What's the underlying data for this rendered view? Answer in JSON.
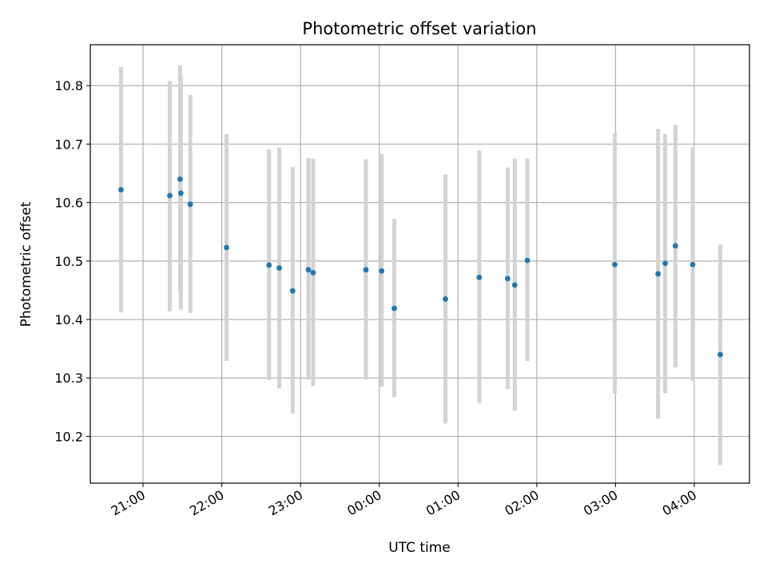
{
  "chart_data": {
    "type": "scatter",
    "title": "Photometric offset variation",
    "xlabel": "UTC time",
    "ylabel": "Photometric offset",
    "x_unit": "UTC time (hours; values past 24 are after midnight)",
    "xlim": [
      20.33,
      28.7
    ],
    "ylim": [
      10.12,
      10.87
    ],
    "x_ticks": [
      {
        "value": 21,
        "label": "21:00"
      },
      {
        "value": 22,
        "label": "22:00"
      },
      {
        "value": 23,
        "label": "23:00"
      },
      {
        "value": 24,
        "label": "00:00"
      },
      {
        "value": 25,
        "label": "01:00"
      },
      {
        "value": 26,
        "label": "02:00"
      },
      {
        "value": 27,
        "label": "03:00"
      },
      {
        "value": 28,
        "label": "04:00"
      }
    ],
    "y_ticks": [
      {
        "value": 10.2,
        "label": "10.2"
      },
      {
        "value": 10.3,
        "label": "10.3"
      },
      {
        "value": 10.4,
        "label": "10.4"
      },
      {
        "value": 10.5,
        "label": "10.5"
      },
      {
        "value": 10.6,
        "label": "10.6"
      },
      {
        "value": 10.7,
        "label": "10.7"
      },
      {
        "value": 10.8,
        "label": "10.8"
      }
    ],
    "grid": true,
    "colors": {
      "point": "#1f77b4",
      "errorbar": "#d3d3d3",
      "grid": "#b0b0b0",
      "axis": "#000000"
    },
    "points": [
      {
        "x": 20.72,
        "y": 10.622,
        "low": 10.412,
        "high": 10.832
      },
      {
        "x": 21.34,
        "y": 10.612,
        "low": 10.414,
        "high": 10.808
      },
      {
        "x": 21.47,
        "y": 10.64,
        "low": 10.446,
        "high": 10.835
      },
      {
        "x": 21.48,
        "y": 10.616,
        "low": 10.417,
        "high": 10.816
      },
      {
        "x": 21.6,
        "y": 10.597,
        "low": 10.411,
        "high": 10.784
      },
      {
        "x": 22.06,
        "y": 10.523,
        "low": 10.329,
        "high": 10.717
      },
      {
        "x": 22.6,
        "y": 10.493,
        "low": 10.296,
        "high": 10.691
      },
      {
        "x": 22.73,
        "y": 10.488,
        "low": 10.282,
        "high": 10.694
      },
      {
        "x": 22.9,
        "y": 10.449,
        "low": 10.239,
        "high": 10.661
      },
      {
        "x": 23.1,
        "y": 10.485,
        "low": 10.297,
        "high": 10.676
      },
      {
        "x": 23.16,
        "y": 10.48,
        "low": 10.286,
        "high": 10.675
      },
      {
        "x": 23.83,
        "y": 10.485,
        "low": 10.297,
        "high": 10.674
      },
      {
        "x": 24.03,
        "y": 10.483,
        "low": 10.285,
        "high": 10.683
      },
      {
        "x": 24.19,
        "y": 10.419,
        "low": 10.267,
        "high": 10.572
      },
      {
        "x": 24.84,
        "y": 10.435,
        "low": 10.222,
        "high": 10.648
      },
      {
        "x": 25.27,
        "y": 10.472,
        "low": 10.257,
        "high": 10.689
      },
      {
        "x": 25.63,
        "y": 10.47,
        "low": 10.281,
        "high": 10.66
      },
      {
        "x": 25.72,
        "y": 10.459,
        "low": 10.244,
        "high": 10.675
      },
      {
        "x": 25.88,
        "y": 10.501,
        "low": 10.329,
        "high": 10.675
      },
      {
        "x": 26.99,
        "y": 10.494,
        "low": 10.273,
        "high": 10.719
      },
      {
        "x": 27.54,
        "y": 10.478,
        "low": 10.23,
        "high": 10.726
      },
      {
        "x": 27.63,
        "y": 10.496,
        "low": 10.274,
        "high": 10.717
      },
      {
        "x": 27.76,
        "y": 10.526,
        "low": 10.318,
        "high": 10.733
      },
      {
        "x": 27.98,
        "y": 10.494,
        "low": 10.295,
        "high": 10.695
      },
      {
        "x": 28.33,
        "y": 10.34,
        "low": 10.151,
        "high": 10.528
      }
    ]
  }
}
